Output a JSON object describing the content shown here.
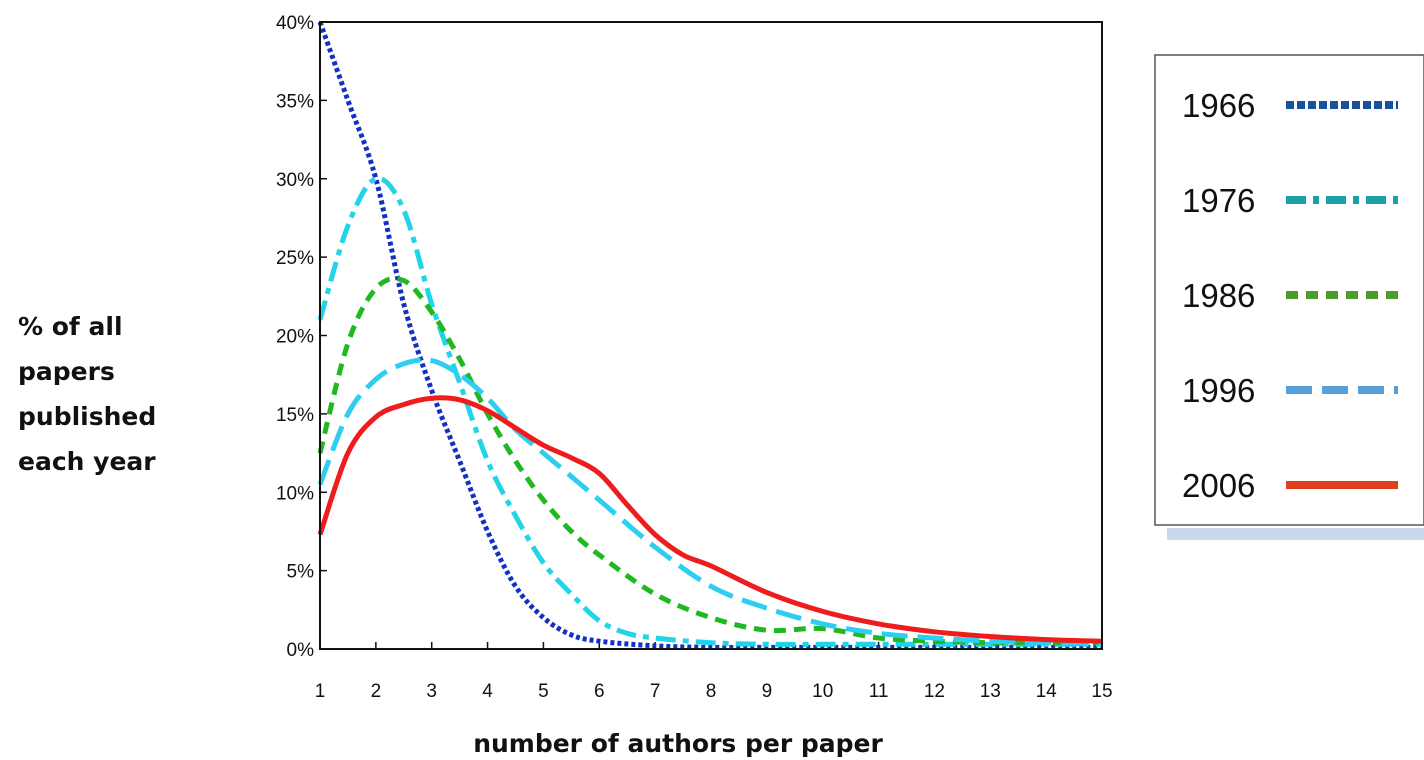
{
  "chart_data": {
    "type": "line",
    "title": "",
    "xlabel": "number of authors per paper",
    "ylabel_lines": [
      "% of all",
      "papers",
      "published",
      "each year"
    ],
    "x": [
      1,
      2,
      3,
      4,
      5,
      6,
      7,
      8,
      9,
      10,
      11,
      12,
      13,
      14,
      15
    ],
    "x_ticks": [
      "1",
      "2",
      "3",
      "4",
      "5",
      "6",
      "7",
      "8",
      "9",
      "10",
      "11",
      "12",
      "13",
      "14",
      "15"
    ],
    "y_ticks": [
      "0%",
      "5%",
      "10%",
      "15%",
      "20%",
      "25%",
      "30%",
      "35%",
      "40%"
    ],
    "xlim": [
      1,
      15
    ],
    "ylim": [
      0,
      40
    ],
    "grid": false,
    "legend_position": "right",
    "series": [
      {
        "name": "1966",
        "color": "#1230c8",
        "legend_color": "#1a4f9c",
        "style": "dotted",
        "x": [
          1,
          1.5,
          2,
          2.5,
          3,
          3.5,
          4,
          4.5,
          5,
          5.5,
          6,
          7,
          8,
          9,
          10,
          11,
          12,
          13,
          14,
          15
        ],
        "values": [
          40,
          35,
          30,
          22,
          16.5,
          12,
          7.5,
          4,
          2,
          0.9,
          0.5,
          0.2,
          0.1,
          0.1,
          0.1,
          0.1,
          0.1,
          0.1,
          0.1,
          0.1
        ]
      },
      {
        "name": "1976",
        "color": "#22d4e8",
        "legend_color": "#1aa0a8",
        "style": "dash-dot",
        "x": [
          1,
          1.5,
          2,
          2.5,
          3,
          3.5,
          4,
          4.5,
          5,
          5.5,
          6,
          6.5,
          7,
          8,
          9,
          10,
          11,
          12,
          13,
          14,
          15
        ],
        "values": [
          21,
          27,
          30,
          28,
          22,
          17,
          12,
          8.5,
          5.5,
          3.5,
          1.8,
          1.0,
          0.7,
          0.4,
          0.3,
          0.3,
          0.3,
          0.3,
          0.3,
          0.3,
          0.3
        ]
      },
      {
        "name": "1986",
        "color": "#20b820",
        "legend_color": "#4d9a2a",
        "style": "dashed",
        "x": [
          1,
          1.5,
          2,
          2.5,
          3,
          3.5,
          4,
          4.5,
          5,
          5.5,
          6,
          7,
          8,
          9,
          10,
          11,
          12,
          13,
          14,
          15
        ],
        "values": [
          12.5,
          19.5,
          23,
          23.5,
          21.5,
          18.5,
          15,
          12,
          9.5,
          7.5,
          6,
          3.5,
          2,
          1.2,
          1.3,
          0.7,
          0.5,
          0.4,
          0.4,
          0.4
        ]
      },
      {
        "name": "1996",
        "color": "#2ecdf2",
        "legend_color": "#5aa0d8",
        "style": "long-dash",
        "x": [
          1,
          1.5,
          2,
          2.5,
          3,
          3.5,
          4,
          4.5,
          5,
          5.5,
          6,
          7,
          8,
          9,
          10,
          11,
          12,
          13,
          14,
          15
        ],
        "values": [
          10.5,
          15,
          17.2,
          18.2,
          18.4,
          17.5,
          16,
          14,
          12.5,
          11,
          9.5,
          6.5,
          4,
          2.6,
          1.6,
          1.0,
          0.7,
          0.5,
          0.4,
          0.3
        ]
      },
      {
        "name": "2006",
        "color": "#ee1c1c",
        "legend_color": "#e04020",
        "style": "solid",
        "x": [
          1,
          1.5,
          2,
          2.5,
          3,
          3.5,
          4,
          4.5,
          5,
          5.5,
          6,
          6.5,
          7,
          7.5,
          8,
          9,
          10,
          11,
          12,
          13,
          14,
          15
        ],
        "values": [
          7.3,
          12.5,
          14.8,
          15.6,
          16,
          15.9,
          15.2,
          14.1,
          13,
          12.2,
          11.2,
          9.2,
          7.3,
          6.0,
          5.3,
          3.6,
          2.4,
          1.6,
          1.1,
          0.8,
          0.6,
          0.5
        ]
      }
    ]
  }
}
